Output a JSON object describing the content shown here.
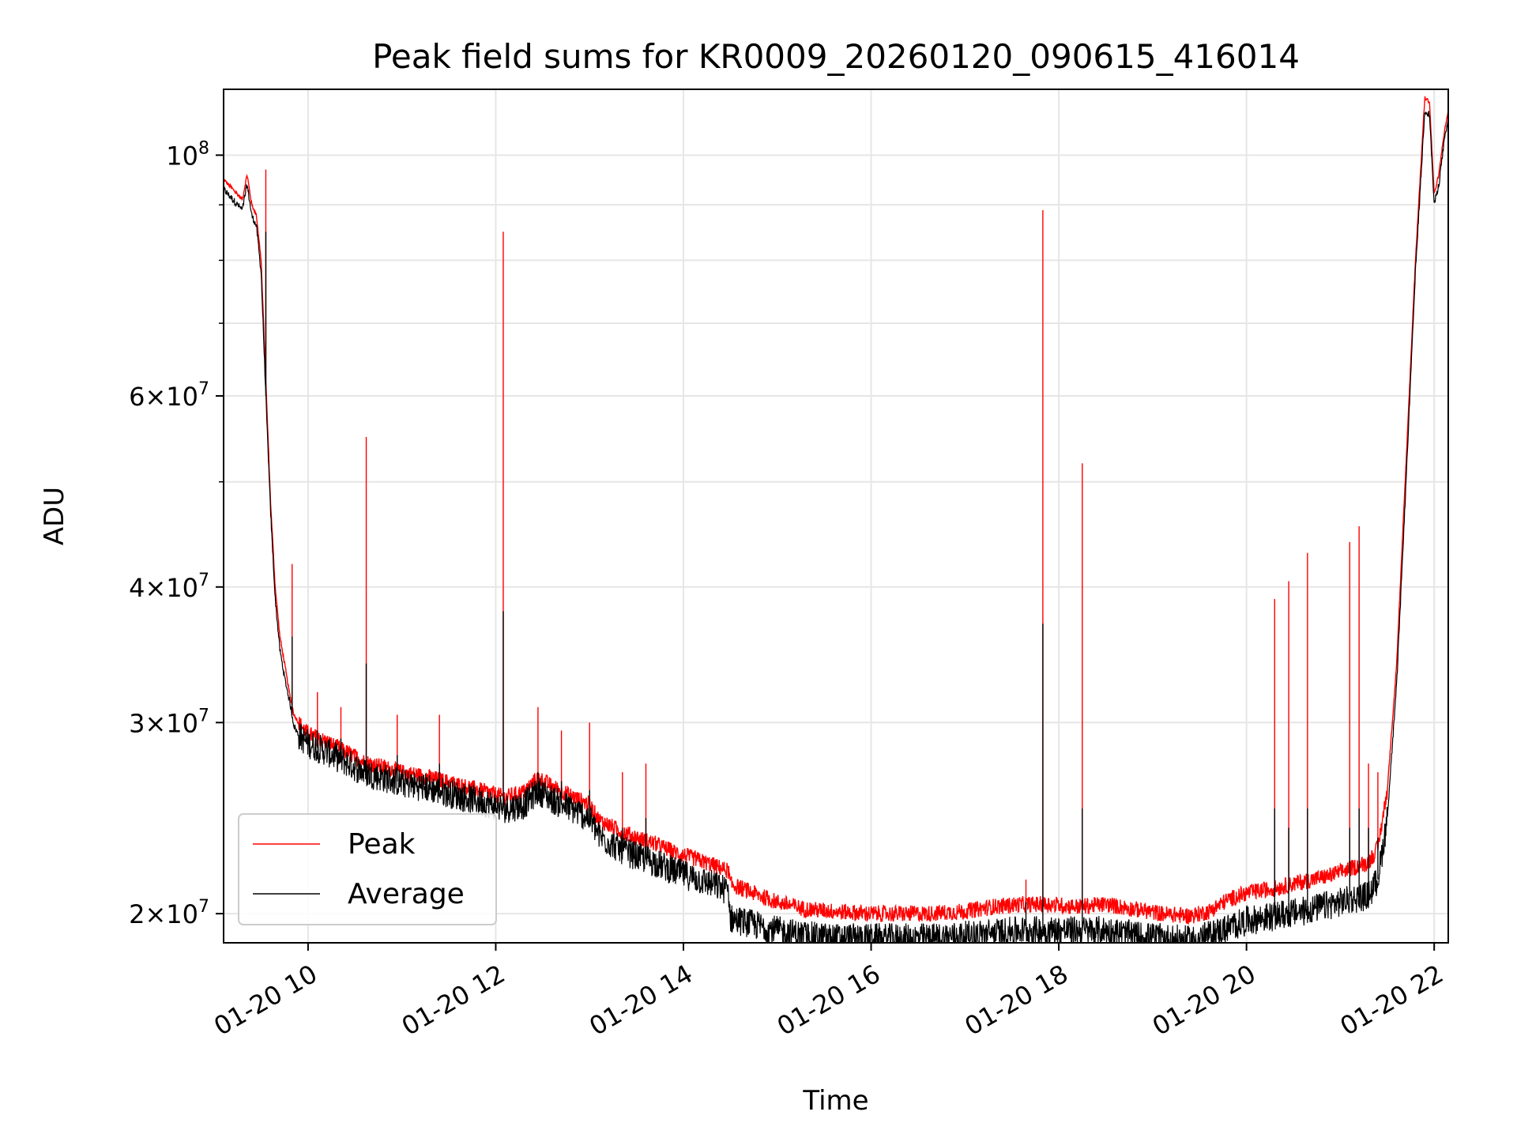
{
  "chart_data": {
    "type": "line",
    "title": "Peak field sums for KR0009_20260120_090615_416014",
    "xlabel": "Time",
    "ylabel": "ADU",
    "yscale": "log",
    "ylim": [
      18800000,
      115000000
    ],
    "xlim_hours": [
      9.1,
      22.15
    ],
    "grid": true,
    "legend_position": "lower-left",
    "x_ticks": [
      {
        "value": 10,
        "label": "01-20 10"
      },
      {
        "value": 12,
        "label": "01-20 12"
      },
      {
        "value": 14,
        "label": "01-20 14"
      },
      {
        "value": 16,
        "label": "01-20 16"
      },
      {
        "value": 18,
        "label": "01-20 18"
      },
      {
        "value": 20,
        "label": "01-20 20"
      },
      {
        "value": 22,
        "label": "01-20 22"
      }
    ],
    "y_ticks": [
      {
        "value": 20000000,
        "mantissa": "2",
        "base": "10",
        "exp": "7"
      },
      {
        "value": 30000000,
        "mantissa": "3",
        "base": "10",
        "exp": "7"
      },
      {
        "value": 40000000,
        "mantissa": "4",
        "base": "10",
        "exp": "7"
      },
      {
        "value": 60000000,
        "mantissa": "6",
        "base": "10",
        "exp": "7"
      },
      {
        "value": 100000000,
        "mantissa": "",
        "base": "10",
        "exp": "8"
      }
    ],
    "y_minor_ticks": [
      50000000,
      70000000,
      80000000,
      90000000
    ],
    "series": [
      {
        "name": "Peak",
        "color": "#ff0000",
        "x": [
          9.1,
          9.2,
          9.3,
          9.35,
          9.4,
          9.45,
          9.5,
          9.55,
          9.6,
          9.65,
          9.7,
          9.75,
          9.8,
          9.85,
          9.9,
          10.0,
          10.2,
          10.4,
          10.6,
          10.8,
          11.0,
          11.3,
          11.6,
          11.9,
          12.1,
          12.3,
          12.45,
          12.6,
          12.8,
          13.0,
          13.1,
          13.3,
          13.5,
          13.7,
          13.9,
          14.1,
          14.3,
          14.48,
          14.5,
          14.8,
          15.0,
          15.3,
          15.6,
          16.0,
          16.3,
          16.6,
          17.0,
          17.3,
          17.6,
          17.9,
          18.2,
          18.5,
          18.8,
          19.1,
          19.4,
          19.6,
          19.8,
          20.0,
          20.3,
          20.6,
          20.9,
          21.1,
          21.3,
          21.4,
          21.5,
          21.6,
          21.7,
          21.8,
          21.9,
          21.95,
          22.0,
          22.05,
          22.1,
          22.15
        ],
        "y": [
          95000000,
          93000000,
          91000000,
          96000000,
          90000000,
          88000000,
          80000000,
          62000000,
          48000000,
          40000000,
          36000000,
          34000000,
          32000000,
          30500000,
          30000000,
          29300000,
          28800000,
          28200000,
          27600000,
          27300000,
          27000000,
          26700000,
          26300000,
          25900000,
          25600000,
          25900000,
          26700000,
          26200000,
          25700000,
          25200000,
          24400000,
          23900000,
          23500000,
          23200000,
          22800000,
          22500000,
          22200000,
          21900000,
          21300000,
          20800000,
          20500000,
          20200000,
          20100000,
          20000000,
          20000000,
          20000000,
          20100000,
          20300000,
          20400000,
          20400000,
          20300000,
          20400000,
          20200000,
          20000000,
          19900000,
          20100000,
          20600000,
          20900000,
          21100000,
          21400000,
          21700000,
          22000000,
          22300000,
          23000000,
          26000000,
          34000000,
          52000000,
          80000000,
          113000000,
          112000000,
          92000000,
          96000000,
          104000000,
          110000000
        ]
      },
      {
        "name": "Average",
        "color": "#000000",
        "x": [
          9.1,
          9.2,
          9.3,
          9.35,
          9.4,
          9.45,
          9.5,
          9.55,
          9.6,
          9.65,
          9.7,
          9.75,
          9.8,
          9.85,
          9.9,
          10.0,
          10.2,
          10.4,
          10.6,
          10.8,
          11.0,
          11.3,
          11.6,
          11.9,
          12.1,
          12.3,
          12.45,
          12.6,
          12.8,
          13.0,
          13.1,
          13.3,
          13.5,
          13.7,
          13.9,
          14.1,
          14.3,
          14.48,
          14.5,
          14.8,
          15.0,
          15.3,
          15.6,
          16.0,
          16.3,
          16.6,
          17.0,
          17.3,
          17.6,
          17.9,
          18.2,
          18.5,
          18.8,
          19.1,
          19.4,
          19.6,
          19.8,
          20.0,
          20.3,
          20.6,
          20.9,
          21.1,
          21.3,
          21.4,
          21.5,
          21.6,
          21.7,
          21.8,
          21.9,
          21.95,
          22.0,
          22.05,
          22.1,
          22.15
        ],
        "y": [
          93000000,
          91000000,
          89000000,
          94000000,
          88000000,
          86000000,
          78000000,
          60000000,
          47000000,
          39000000,
          35000000,
          33000000,
          31500000,
          29800000,
          29200000,
          28700000,
          28200000,
          27600000,
          27000000,
          26700000,
          26400000,
          26100000,
          25700000,
          25300000,
          25000000,
          25200000,
          26000000,
          25500000,
          25000000,
          24500000,
          23600000,
          23000000,
          22600000,
          22300000,
          21900000,
          21600000,
          21300000,
          21000000,
          19800000,
          19500000,
          19300000,
          19100000,
          19000000,
          19000000,
          19000000,
          19000000,
          19100000,
          19200000,
          19300000,
          19300000,
          19300000,
          19300000,
          19100000,
          19000000,
          18900000,
          19100000,
          19400000,
          19700000,
          19900000,
          20100000,
          20400000,
          20600000,
          20800000,
          21500000,
          24500000,
          32500000,
          50000000,
          78000000,
          110000000,
          109000000,
          90000000,
          94000000,
          102000000,
          108000000
        ]
      }
    ],
    "spikes": [
      {
        "x": 9.55,
        "peak": 97000000,
        "average": 85000000
      },
      {
        "x": 9.83,
        "peak": 42000000,
        "average": 36000000
      },
      {
        "x": 10.1,
        "peak": 32000000,
        "average": 29500000
      },
      {
        "x": 10.35,
        "peak": 31000000,
        "average": 29000000
      },
      {
        "x": 10.62,
        "peak": 55000000,
        "average": 34000000
      },
      {
        "x": 10.95,
        "peak": 30500000,
        "average": 28000000
      },
      {
        "x": 11.4,
        "peak": 30500000,
        "average": 27500000
      },
      {
        "x": 12.08,
        "peak": 85000000,
        "average": 38000000
      },
      {
        "x": 12.45,
        "peak": 31000000,
        "average": 27000000
      },
      {
        "x": 12.7,
        "peak": 29500000,
        "average": 26500000
      },
      {
        "x": 13.0,
        "peak": 30000000,
        "average": 26000000
      },
      {
        "x": 13.35,
        "peak": 27000000,
        "average": 24000000
      },
      {
        "x": 13.6,
        "peak": 27500000,
        "average": 24500000
      },
      {
        "x": 17.65,
        "peak": 21500000,
        "average": 20500000
      },
      {
        "x": 17.83,
        "peak": 89000000,
        "average": 37000000
      },
      {
        "x": 18.25,
        "peak": 52000000,
        "average": 25000000
      },
      {
        "x": 20.3,
        "peak": 39000000,
        "average": 25000000
      },
      {
        "x": 20.45,
        "peak": 40500000,
        "average": 24000000
      },
      {
        "x": 20.65,
        "peak": 43000000,
        "average": 25000000
      },
      {
        "x": 21.1,
        "peak": 44000000,
        "average": 24000000
      },
      {
        "x": 21.2,
        "peak": 45500000,
        "average": 25000000
      },
      {
        "x": 21.3,
        "peak": 27500000,
        "average": 24000000
      },
      {
        "x": 21.4,
        "peak": 27000000,
        "average": 23500000
      }
    ]
  }
}
